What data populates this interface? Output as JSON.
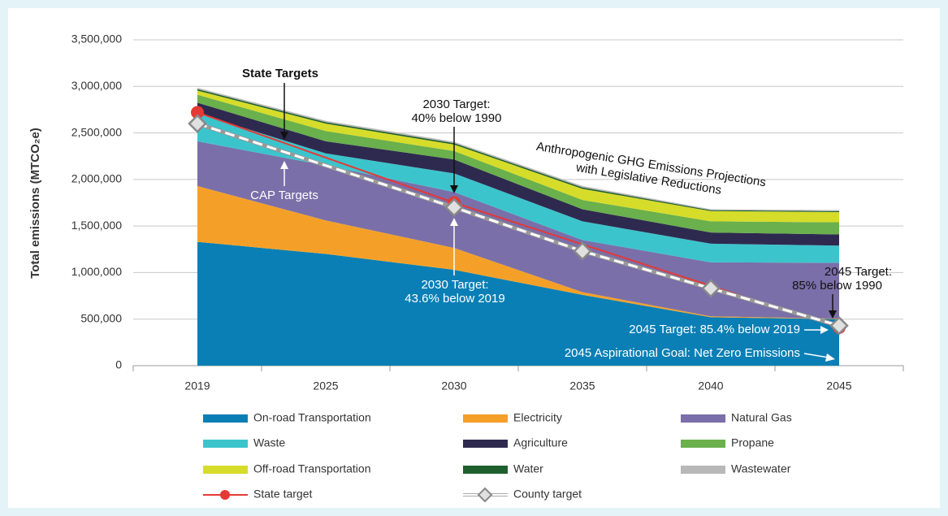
{
  "chart_data": {
    "type": "stacked-area",
    "y_label": "Total emissions (MTCO₂e)",
    "categories": [
      "2019",
      "2025",
      "2030",
      "2035",
      "2040",
      "2045"
    ],
    "ylim": [
      0,
      3500000
    ],
    "yticks": [
      0,
      {
        "value": 500000,
        "label": "500,000"
      },
      {
        "value": 1000000,
        "label": "1,000,000"
      },
      {
        "value": 1500000,
        "label": "1,500,000"
      },
      {
        "value": 2000000,
        "label": "2,000,000"
      },
      {
        "value": 2500000,
        "label": "2,500,000"
      },
      {
        "value": 3000000,
        "label": "3,000,000"
      },
      {
        "value": 3500000,
        "label": "3,500,000"
      }
    ],
    "grid": true,
    "series": [
      {
        "name": "On-road Transportation",
        "color": "#0a7fb5",
        "values": [
          1330000,
          1200000,
          1030000,
          760000,
          520000,
          500000
        ]
      },
      {
        "name": "Electricity",
        "color": "#f4a028",
        "values": [
          600000,
          360000,
          235000,
          30000,
          10000,
          5000
        ]
      },
      {
        "name": "Natural Gas",
        "color": "#7a6fa8",
        "values": [
          480000,
          590000,
          600000,
          560000,
          580000,
          600000
        ]
      },
      {
        "name": "Waste",
        "color": "#3cc4cc",
        "values": [
          300000,
          130000,
          200000,
          200000,
          200000,
          185000
        ]
      },
      {
        "name": "Agriculture",
        "color": "#2e2a4f",
        "values": [
          115000,
          130000,
          150000,
          130000,
          120000,
          120000
        ]
      },
      {
        "name": "Propane",
        "color": "#6ab04c",
        "values": [
          85000,
          110000,
          90000,
          100000,
          120000,
          130000
        ]
      },
      {
        "name": "Off-road Transportation",
        "color": "#d6dc2a",
        "values": [
          45000,
          80000,
          70000,
          120000,
          110000,
          110000
        ]
      },
      {
        "name": "Water",
        "color": "#1e5f2e",
        "values": [
          15000,
          15000,
          15000,
          15000,
          10000,
          10000
        ]
      },
      {
        "name": "Wastewater",
        "color": "#b8b8b8",
        "values": [
          15000,
          15000,
          15000,
          15000,
          10000,
          10000
        ]
      }
    ],
    "lines": [
      {
        "name": "State target",
        "color": "#e53935",
        "marker": "circle",
        "x": [
          "2019",
          "2030",
          "2045"
        ],
        "values": [
          2720000,
          1750000,
          410000
        ]
      },
      {
        "name": "County target",
        "color": "#ffffff",
        "marker": "diamond",
        "dashed": true,
        "x": [
          "2019",
          "2030",
          "2035",
          "2040",
          "2045"
        ],
        "values": [
          2600000,
          1700000,
          1230000,
          830000,
          430000
        ]
      }
    ],
    "annotations": [
      [
        "State Targets"
      ],
      [
        "2030 Target:",
        "40% below 1990"
      ],
      [
        "Anthropogenic GHG Emissions Projections",
        "with Legislative Reductions"
      ],
      [
        "CAP Targets"
      ],
      [
        "2030 Target:",
        "43.6% below 2019"
      ],
      [
        "2045 Target:",
        "85% below 1990"
      ],
      [
        "2045 Target: 85.4% below 2019"
      ],
      [
        "2045 Aspirational Goal: Net Zero Emissions"
      ]
    ]
  }
}
